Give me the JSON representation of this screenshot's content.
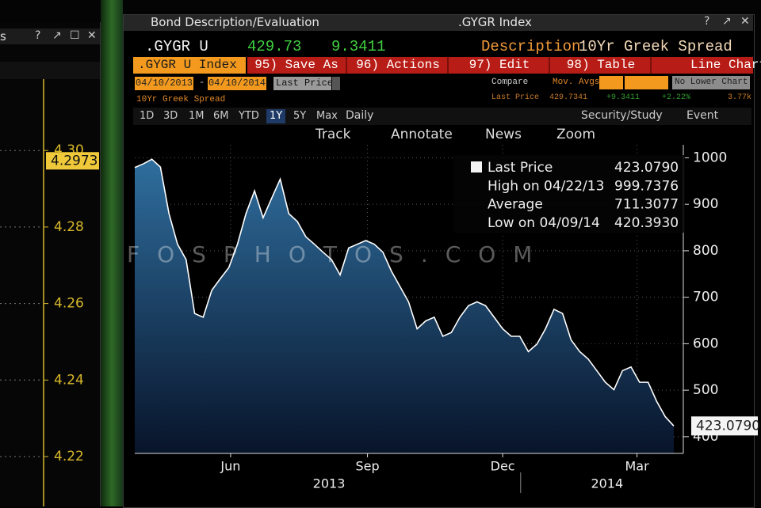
{
  "left_panel": {
    "title_fragment": "s",
    "controls": [
      "?",
      "↗",
      "☐",
      "✕"
    ],
    "yticks": [
      {
        "value": 4.3,
        "label": "4.30"
      },
      4.28,
      4.26,
      4.24,
      4.22
    ],
    "ylim": [
      4.2148,
      4.3043
    ],
    "last_tag": 4.2973
  },
  "window": {
    "title": "Bond Description/Evaluation",
    "ticker_tab": ".GYGR Index",
    "controls": [
      "?",
      "↗",
      "✕"
    ]
  },
  "quote": {
    "ticker": ".GYGR U",
    "price": "429.73",
    "change": "9.3411",
    "description_label": "Description",
    "description": "10Yr Greek Spread"
  },
  "toolbar": {
    "security": ".GYGR U Index",
    "buttons": [
      "95) Save As",
      "96) Actions",
      "97) Edit",
      "98) Table"
    ],
    "chart_type": "Line Chart"
  },
  "settings": {
    "start_date": "04/10/2013",
    "separator": "-",
    "end_date": "04/10/2014",
    "field": "Last Price",
    "compare": "Compare",
    "mov_avgs": "Mov. Avgs",
    "lower_chart": "No Lower Chart"
  },
  "info_row": {
    "name": "10Yr Greek Spread",
    "field": "Last Price",
    "last": "429.7341",
    "change": "+9.3411",
    "pct": "+2.22%",
    "volume": "3.77k"
  },
  "ranges": [
    "1D",
    "3D",
    "1M",
    "6M",
    "YTD",
    "1Y",
    "5Y",
    "Max"
  ],
  "active_range": 5,
  "frequency": "Daily",
  "study": "Security/Study",
  "event": "Event",
  "chart_tools": [
    "Track",
    "Annotate",
    "News",
    "Zoom"
  ],
  "legend": [
    {
      "label": "Last Price",
      "value": "423.0790"
    },
    {
      "label": "High on 04/22/13",
      "value": "999.7376"
    },
    {
      "label": "Average",
      "value": "711.3077"
    },
    {
      "label": "Low on 04/09/14",
      "value": "420.3930"
    }
  ],
  "watermark": "FOSPHOTOS.COM",
  "chart": {
    "type": "line",
    "values": [
      979,
      987,
      997,
      980,
      880,
      814,
      781,
      665,
      657,
      715,
      740,
      764,
      814,
      880,
      929,
      871,
      913,
      954,
      880,
      863,
      830,
      814,
      797,
      781,
      748,
      806,
      814,
      822,
      814,
      797,
      756,
      723,
      690,
      632,
      649,
      657,
      616,
      624,
      657,
      682,
      690,
      682,
      657,
      632,
      616,
      616,
      583,
      599,
      632,
      674,
      665,
      608,
      583,
      567,
      542,
      517,
      501,
      542,
      550,
      517,
      517,
      476,
      443,
      423.079
    ],
    "xlim": [
      0,
      63
    ],
    "xticks": [
      {
        "value": 11.2,
        "label": "Jun"
      },
      {
        "value": 27.2,
        "label": "Sep"
      },
      {
        "value": 43,
        "label": "Dec"
      },
      {
        "value": 58.7,
        "label": "Mar"
      }
    ],
    "years": [
      {
        "value": 22.7,
        "label": "2013"
      },
      {
        "value": 55.2,
        "label": "2014"
      }
    ],
    "year_divider": 45.1,
    "ylim": [
      364,
      1028
    ],
    "yticks": [
      400,
      500,
      600,
      700,
      800,
      900,
      1000
    ],
    "last_tag": {
      "value": 423.079,
      "label": "423.0790"
    },
    "line_color": "#ffffff",
    "fill_top": "#2f6e9e",
    "fill_bottom": "#08142a",
    "grid": true
  }
}
